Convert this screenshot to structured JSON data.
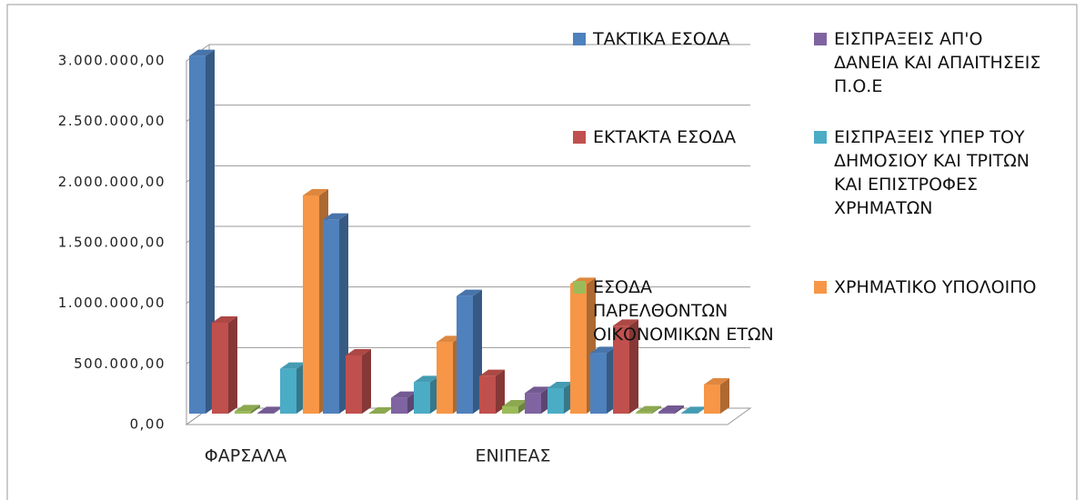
{
  "chart_data": {
    "type": "bar3d",
    "categories": [
      "ΦΑΡΣΑΛΑ",
      null,
      "ΕΝΙΠΕΑΣ",
      null
    ],
    "series": [
      {
        "name": "ΤΑΚΤΙΚΑ ΕΣΟΔΑ",
        "color": "#4f81bd",
        "values": [
          2950000,
          1600000,
          970000,
          500000
        ]
      },
      {
        "name": "ΕΚΤΑΚΤΑ ΕΣΟΔΑ",
        "color": "#c0504d",
        "values": [
          750000,
          480000,
          310000,
          725000
        ]
      },
      {
        "name": "ΕΣΟΔΑ ΠΑΡΕΛΘΟΝΤΩΝ ΟΙΚΟΝΟΜΙΚΩΝ ΕΤΩΝ",
        "color": "#9bbb59",
        "values": [
          20000,
          0,
          60000,
          10000
        ]
      },
      {
        "name": "ΕΙΣΠΡΑΞΕΙΣ ΑΠ'Ο ΔΑΝΕΙΑ ΚΑΙ ΑΠΑΙΤΗΣΕΙΣ Π.Ο.Ε",
        "color": "#8064a2",
        "values": [
          5000,
          130000,
          170000,
          15000
        ]
      },
      {
        "name": "ΕΙΣΠΡΑΞΕΙΣ ΥΠΕΡ ΤΟΥ ΔΗΜΟΣΙΟΥ ΚΑΙ ΤΡΙΤΩΝ ΚΑΙ ΕΠΙΣΤΡΟΦΕΣ ΧΡΗΜΑΤΩΝ",
        "color": "#4bacc6",
        "values": [
          370000,
          260000,
          210000,
          5000
        ]
      },
      {
        "name": "ΧΡΗΜΑΤΙΚΟ ΥΠΟΛΟΙΠΟ",
        "color": "#f79646",
        "values": [
          1800000,
          590000,
          1070000,
          240000
        ]
      }
    ],
    "ylim": [
      0,
      3000000
    ],
    "yticks": [
      {
        "value": 0,
        "label": "0,00"
      },
      {
        "value": 500000,
        "label": "500.000,00"
      },
      {
        "value": 1000000,
        "label": "1.000.000,00"
      },
      {
        "value": 1500000,
        "label": "1.500.000,00"
      },
      {
        "value": 2000000,
        "label": "2.000.000,00"
      },
      {
        "value": 2500000,
        "label": "2.500.000,00"
      },
      {
        "value": 3000000,
        "label": "3.000.000,00"
      }
    ],
    "grid": true,
    "legend": "right"
  }
}
